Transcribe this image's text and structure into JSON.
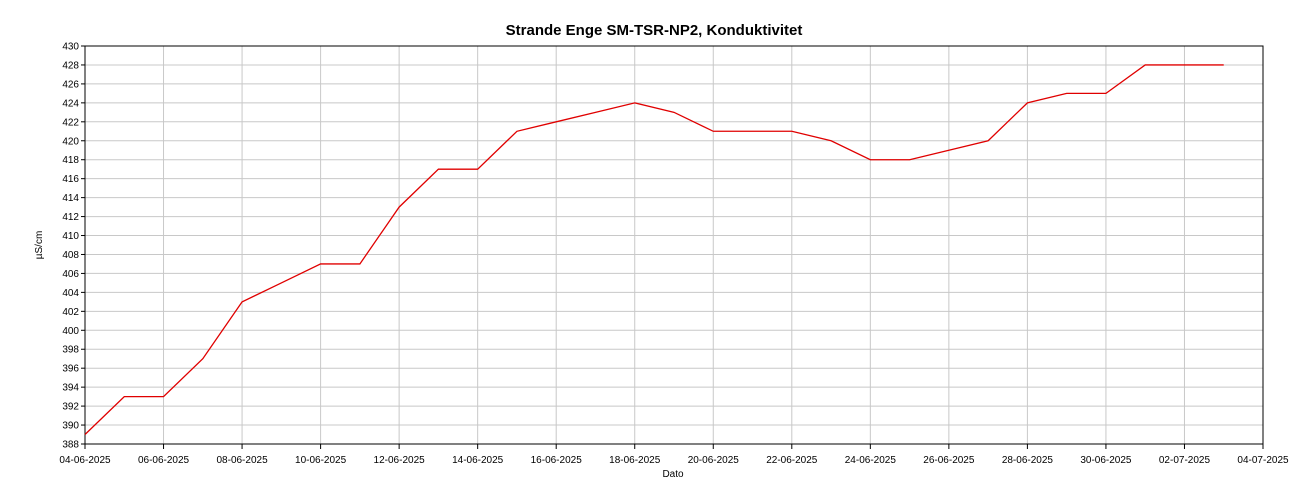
{
  "chart_data": {
    "type": "line",
    "title": "Strande Enge SM-TSR-NP2, Konduktivitet",
    "xlabel": "Dato",
    "ylabel": "µS/cm",
    "x": [
      "04-06-2025",
      "05-06-2025",
      "06-06-2025",
      "07-06-2025",
      "08-06-2025",
      "09-06-2025",
      "10-06-2025",
      "11-06-2025",
      "12-06-2025",
      "13-06-2025",
      "14-06-2025",
      "15-06-2025",
      "16-06-2025",
      "17-06-2025",
      "18-06-2025",
      "19-06-2025",
      "20-06-2025",
      "21-06-2025",
      "22-06-2025",
      "23-06-2025",
      "24-06-2025",
      "25-06-2025",
      "26-06-2025",
      "27-06-2025",
      "28-06-2025",
      "29-06-2025",
      "30-06-2025",
      "01-07-2025",
      "02-07-2025",
      "03-07-2025"
    ],
    "series": [
      {
        "name": "Konduktivitet",
        "color": "#e00000",
        "values": [
          389,
          393,
          393,
          397,
          403,
          405,
          407,
          407,
          413,
          417,
          417,
          421,
          422,
          423,
          424,
          423,
          421,
          421,
          421,
          420,
          418,
          418,
          419,
          420,
          424,
          425,
          425,
          428,
          428,
          428
        ]
      }
    ],
    "xlim": [
      "04-06-2025",
      "04-07-2025"
    ],
    "xticks": [
      "04-06-2025",
      "06-06-2025",
      "08-06-2025",
      "10-06-2025",
      "12-06-2025",
      "14-06-2025",
      "16-06-2025",
      "18-06-2025",
      "20-06-2025",
      "22-06-2025",
      "24-06-2025",
      "26-06-2025",
      "28-06-2025",
      "30-06-2025",
      "02-07-2025",
      "04-07-2025"
    ],
    "ylim": [
      388,
      430
    ],
    "yticks": [
      388,
      390,
      392,
      394,
      396,
      398,
      400,
      402,
      404,
      406,
      408,
      410,
      412,
      414,
      416,
      418,
      420,
      422,
      424,
      426,
      428,
      430
    ],
    "grid": true
  }
}
